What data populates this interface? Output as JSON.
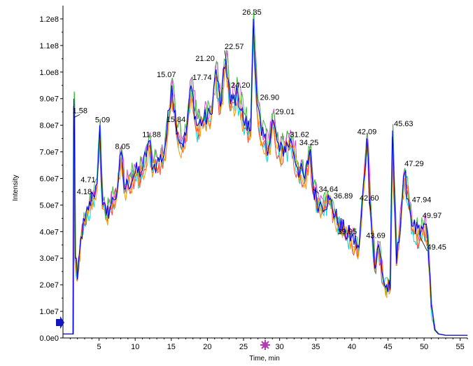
{
  "chart_data": {
    "type": "line",
    "title": "",
    "xlabel": "Time, min",
    "ylabel": "Intensity",
    "xlim": [
      0,
      56
    ],
    "ylim": [
      0,
      125000000
    ],
    "grid": false,
    "x_ticks": [
      5,
      10,
      15,
      20,
      25,
      30,
      35,
      40,
      45,
      50,
      55
    ],
    "x_tick_labels": [
      "5",
      "10",
      "15",
      "20",
      "25",
      "30",
      "35",
      "40",
      "45",
      "50",
      "55"
    ],
    "y_ticks": [
      0,
      10000000,
      20000000,
      30000000,
      40000000,
      50000000,
      60000000,
      70000000,
      80000000,
      90000000,
      100000000,
      110000000,
      120000000
    ],
    "y_tick_labels": [
      "0.0e0",
      "1.0e7",
      "2.0e7",
      "3.0e7",
      "4.0e7",
      "5.0e7",
      "6.0e7",
      "7.0e7",
      "8.0e7",
      "9.0e7",
      "1.0e8",
      "1.1e8",
      "1.2e8"
    ],
    "series_colors": [
      "#00d8d8",
      "#e040e0",
      "#ff4040",
      "#40c040",
      "#ff9900",
      "#0000ff"
    ],
    "series": [
      {
        "color": "#0000ff",
        "x": [
          0.0,
          1.4,
          1.5,
          1.58,
          1.7,
          2.0,
          2.5,
          3.0,
          3.5,
          4.18,
          4.71,
          5.09,
          5.5,
          6.0,
          6.5,
          7.0,
          7.5,
          8.05,
          8.5,
          9.0,
          10.0,
          11.0,
          11.88,
          12.5,
          13.0,
          14.0,
          15.07,
          15.84,
          16.5,
          17.0,
          17.74,
          18.5,
          19.5,
          20.5,
          21.2,
          21.8,
          22.57,
          23.2,
          24.2,
          25.0,
          26.0,
          26.35,
          26.9,
          27.5,
          28.5,
          29.01,
          30.0,
          31.62,
          32.5,
          33.5,
          34.25,
          34.64,
          35.5,
          36.89,
          38.0,
          39.0,
          39.95,
          41.0,
          42.09,
          42.6,
          43.2,
          43.69,
          44.5,
          45.3,
          45.63,
          46.2,
          47.29,
          47.94,
          48.5,
          49.45,
          49.97,
          50.5,
          51.0,
          51.5,
          52.0,
          53.0,
          55.0,
          56.0
        ],
        "y": [
          1500000,
          1500000,
          90000000,
          83000000,
          30000000,
          22000000,
          38000000,
          44000000,
          48000000,
          54000000,
          58000000,
          80000000,
          50000000,
          46000000,
          49000000,
          52000000,
          55000000,
          70000000,
          56000000,
          58000000,
          62000000,
          63000000,
          74000000,
          64000000,
          66000000,
          69000000,
          95000000,
          77000000,
          73000000,
          76000000,
          95000000,
          80000000,
          82000000,
          84000000,
          101000000,
          87000000,
          105000000,
          88000000,
          92000000,
          82000000,
          78000000,
          120000000,
          88000000,
          76000000,
          72000000,
          82000000,
          70000000,
          74000000,
          64000000,
          60000000,
          71000000,
          56000000,
          50000000,
          52000000,
          44000000,
          40000000,
          38000000,
          34000000,
          75000000,
          48000000,
          26000000,
          35000000,
          20000000,
          18000000,
          78000000,
          28000000,
          62000000,
          50000000,
          42000000,
          38000000,
          43000000,
          38000000,
          12000000,
          3000000,
          1500000,
          1000000,
          1000000,
          1000000
        ]
      }
    ],
    "peak_labels": [
      {
        "text": "1.58",
        "x": 1.58,
        "y": 83000000
      },
      {
        "text": "4.18",
        "x": 4.18,
        "y": 54000000
      },
      {
        "text": "4.71",
        "x": 4.71,
        "y": 58000000
      },
      {
        "text": "5.09",
        "x": 5.09,
        "y": 80000000
      },
      {
        "text": "8.05",
        "x": 8.05,
        "y": 70000000
      },
      {
        "text": "11.88",
        "x": 11.88,
        "y": 74000000
      },
      {
        "text": "15.07",
        "x": 15.07,
        "y": 95000000
      },
      {
        "text": "15.84",
        "x": 15.84,
        "y": 77000000
      },
      {
        "text": "17.74",
        "x": 17.74,
        "y": 95000000
      },
      {
        "text": "21.20",
        "x": 21.2,
        "y": 101000000
      },
      {
        "text": "22.57",
        "x": 22.57,
        "y": 105000000
      },
      {
        "text": "24.20",
        "x": 24.2,
        "y": 92000000
      },
      {
        "text": "26.35",
        "x": 26.35,
        "y": 120000000
      },
      {
        "text": "26.90",
        "x": 26.9,
        "y": 88000000
      },
      {
        "text": "29.01",
        "x": 29.01,
        "y": 82000000
      },
      {
        "text": "31.62",
        "x": 31.62,
        "y": 74000000
      },
      {
        "text": "34.25",
        "x": 34.25,
        "y": 71000000
      },
      {
        "text": "34.64",
        "x": 34.64,
        "y": 56000000
      },
      {
        "text": "36.89",
        "x": 36.89,
        "y": 52000000
      },
      {
        "text": "39.95",
        "x": 39.95,
        "y": 38000000
      },
      {
        "text": "42.09",
        "x": 42.09,
        "y": 75000000
      },
      {
        "text": "42.60",
        "x": 42.6,
        "y": 48000000
      },
      {
        "text": "43.69",
        "x": 43.69,
        "y": 35000000
      },
      {
        "text": "45.63",
        "x": 45.63,
        "y": 78000000
      },
      {
        "text": "47.29",
        "x": 47.29,
        "y": 62000000
      },
      {
        "text": "47.94",
        "x": 47.94,
        "y": 50000000
      },
      {
        "text": "49.45",
        "x": 49.45,
        "y": 38000000
      },
      {
        "text": "49.97",
        "x": 49.97,
        "y": 43000000
      }
    ]
  }
}
